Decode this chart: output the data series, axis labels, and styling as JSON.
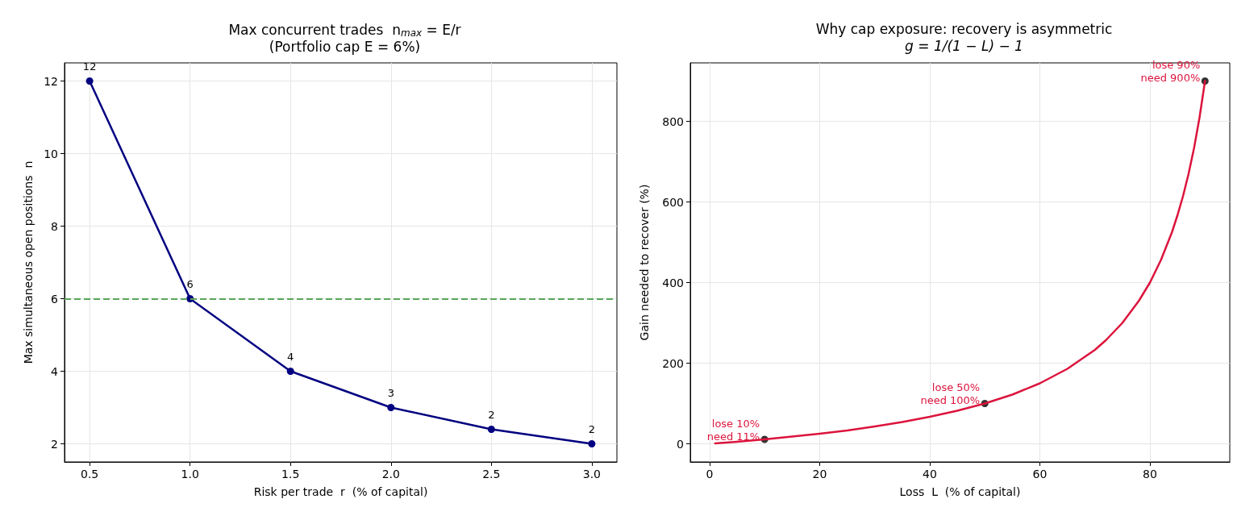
{
  "chart_data": [
    {
      "type": "line",
      "title": "Max concurrent trades  n$_{max}$ = E/r",
      "subtitle": "(Portfolio cap E = 6%)",
      "xlabel": "Risk per trade  r  (% of capital)",
      "ylabel": "Max simultaneous open positions  n",
      "x": [
        0.5,
        1.0,
        1.5,
        2.0,
        2.5,
        3.0
      ],
      "series": [
        {
          "color": "#000080",
          "values": [
            12,
            6,
            4,
            3,
            2.4,
            2
          ],
          "value_labels": [
            "12",
            "6",
            "4",
            "3",
            "2",
            "2"
          ]
        }
      ],
      "xlim": [
        0.375,
        3.125
      ],
      "xticks": [
        {
          "value": 0.5,
          "label": "0.5"
        },
        {
          "value": 1,
          "label": "1.0"
        },
        {
          "value": 1.5,
          "label": "1.5"
        },
        {
          "value": 2,
          "label": "2.0"
        },
        {
          "value": 2.5,
          "label": "2.5"
        },
        {
          "value": 3,
          "label": "3.0"
        }
      ],
      "ylim": [
        1.5,
        12.5
      ],
      "yticks": [
        2,
        4,
        6,
        8,
        10,
        12
      ],
      "ref_lines": [
        {
          "axis": "y",
          "value": 6,
          "color": "#5aa55a",
          "line_style": "dashed"
        }
      ],
      "grid": true,
      "marker": "circle",
      "line_style": "solid"
    },
    {
      "type": "line",
      "title": "Why cap exposure: recovery is asymmetric",
      "subtitle": "g = 1/(1 − L) − 1",
      "xlabel": "Loss  L  (% of capital)",
      "ylabel": "Gain needed to recover (%)",
      "series": [
        {
          "color": "#dc143c",
          "marker": "none",
          "x": [
            1,
            5,
            10,
            15,
            20,
            25,
            30,
            35,
            40,
            45,
            50,
            55,
            60,
            65,
            70,
            72,
            75,
            78,
            80,
            82,
            84,
            85,
            86,
            87,
            88,
            89,
            90
          ],
          "values": [
            1,
            5,
            11,
            18,
            25,
            33,
            43,
            54,
            67,
            82,
            100,
            122,
            150,
            186,
            233,
            257,
            300,
            355,
            400,
            456,
            525,
            567,
            614,
            669,
            733,
            809,
            900
          ]
        },
        {
          "type": "scatter",
          "color": "#000000",
          "marker": "circle",
          "x": [
            10,
            50,
            90
          ],
          "values": [
            11,
            100,
            900
          ]
        }
      ],
      "annotations": [
        {
          "text": "lose 10%\nneed 11%",
          "x": 10,
          "y": 11
        },
        {
          "text": "lose 50%\nneed 100%",
          "x": 50,
          "y": 100
        },
        {
          "text": "lose 90%\nneed 900%",
          "x": 90,
          "y": 900
        }
      ],
      "xlim": [
        -3.5,
        94.5
      ],
      "xticks": [
        0,
        20,
        40,
        60,
        80
      ],
      "ylim": [
        -45,
        945
      ],
      "yticks": [
        0,
        200,
        400,
        600,
        800
      ],
      "grid": true,
      "line_style": "solid"
    }
  ]
}
